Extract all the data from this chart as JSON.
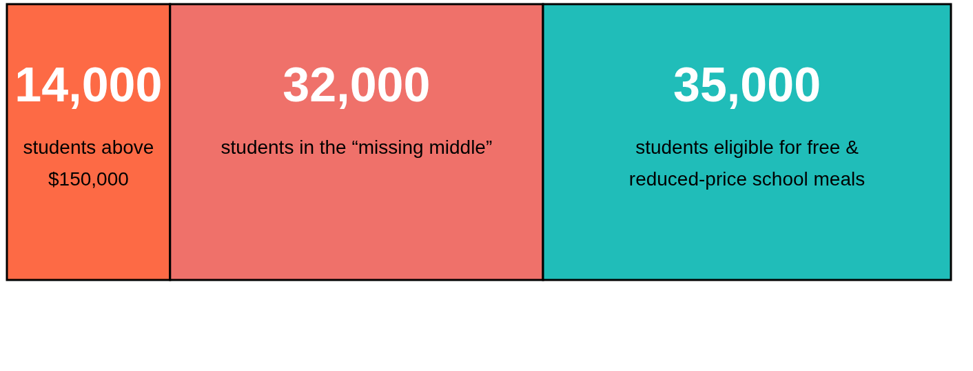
{
  "chart_data": {
    "type": "bar",
    "orientation": "horizontal",
    "stacked": true,
    "categories": [
      null
    ],
    "xlim": [
      0,
      81000
    ],
    "tick_labels": false,
    "series": [
      {
        "name": "students above $150,000",
        "color": "#fd6a45",
        "values": [
          14000
        ],
        "value_labels": [
          "14,000"
        ]
      },
      {
        "name": "students in the “missing middle”",
        "color": "#ef716a",
        "values": [
          32000
        ],
        "value_labels": [
          "32,000"
        ]
      },
      {
        "name": "students eligible for free & reduced-price school meals",
        "color": "#20bdb9",
        "values": [
          35000
        ],
        "value_labels": [
          "35,000"
        ]
      }
    ]
  }
}
